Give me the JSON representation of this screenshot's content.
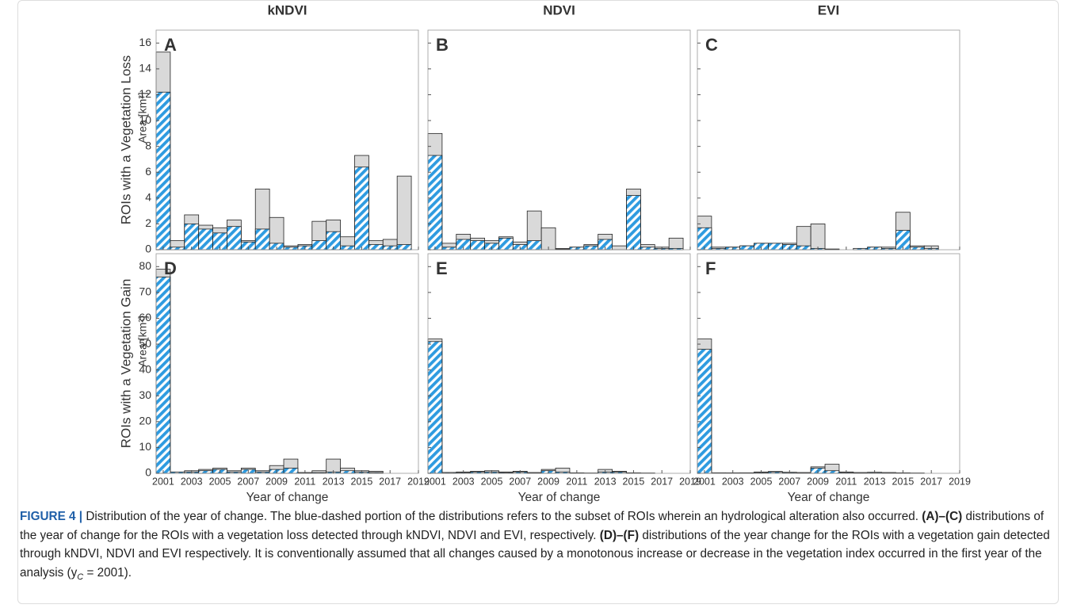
{
  "chart_data": [
    {
      "type": "bar",
      "title": "kNDVI",
      "panel": "A",
      "row_label": "ROIs with a Vegetation Loss",
      "ylabel": "Area [km²]",
      "x": [
        2001,
        2002,
        2003,
        2004,
        2005,
        2006,
        2007,
        2008,
        2009,
        2010,
        2011,
        2012,
        2013,
        2014,
        2015,
        2016,
        2017,
        2018
      ],
      "series": [
        {
          "color": "#d9d9d9",
          "values": [
            15.3,
            0.7,
            2.7,
            1.9,
            1.7,
            2.3,
            0.7,
            4.7,
            2.5,
            0.3,
            0.4,
            2.2,
            2.3,
            1.0,
            7.3,
            0.7,
            0.8,
            5.7
          ]
        },
        {
          "color": "#2e9be0",
          "pattern": "hatch",
          "values": [
            12.2,
            0.2,
            2.0,
            1.6,
            1.3,
            1.8,
            0.6,
            1.6,
            0.5,
            0.2,
            0.3,
            0.7,
            1.4,
            0.3,
            6.4,
            0.4,
            0.3,
            0.4
          ]
        }
      ],
      "xlim": [
        2000.5,
        2019
      ],
      "xticks": [
        2001,
        2003,
        2005,
        2007,
        2009,
        2011,
        2013,
        2015,
        2017,
        2019
      ],
      "xticklabels": false,
      "ylim": [
        0,
        17
      ],
      "yticks": [
        0,
        2,
        4,
        6,
        8,
        10,
        12,
        14,
        16
      ],
      "yticklabels": true
    },
    {
      "type": "bar",
      "title": "NDVI",
      "panel": "B",
      "x": [
        2001,
        2002,
        2003,
        2004,
        2005,
        2006,
        2007,
        2008,
        2009,
        2010,
        2011,
        2012,
        2013,
        2014,
        2015,
        2016,
        2017,
        2018
      ],
      "series": [
        {
          "color": "#d9d9d9",
          "values": [
            9.0,
            0.5,
            1.2,
            0.9,
            0.7,
            1.0,
            0.6,
            3.0,
            1.7,
            0.1,
            0.2,
            0.4,
            1.2,
            0.3,
            4.7,
            0.4,
            0.2,
            0.9
          ]
        },
        {
          "color": "#2e9be0",
          "pattern": "hatch",
          "values": [
            7.3,
            0.2,
            0.8,
            0.7,
            0.5,
            0.9,
            0.4,
            0.7,
            0.0,
            0.05,
            0.2,
            0.3,
            0.8,
            0.0,
            4.2,
            0.2,
            0.1,
            0.1
          ]
        }
      ],
      "xlim": [
        2000.5,
        2019
      ],
      "xticks": [
        2001,
        2003,
        2005,
        2007,
        2009,
        2011,
        2013,
        2015,
        2017,
        2019
      ],
      "xticklabels": false,
      "ylim": [
        0,
        17
      ],
      "yticks": [
        0,
        2,
        4,
        6,
        8,
        10,
        12,
        14,
        16
      ],
      "yticklabels": false
    },
    {
      "type": "bar",
      "title": "EVI",
      "panel": "C",
      "x": [
        2001,
        2002,
        2003,
        2004,
        2005,
        2006,
        2007,
        2008,
        2009,
        2010,
        2011,
        2012,
        2013,
        2014,
        2015,
        2016,
        2017,
        2018
      ],
      "series": [
        {
          "color": "#d9d9d9",
          "values": [
            2.6,
            0.2,
            0.2,
            0.3,
            0.5,
            0.5,
            0.5,
            1.8,
            2.0,
            0.05,
            0,
            0.1,
            0.2,
            0.2,
            2.9,
            0.3,
            0.3,
            0
          ]
        },
        {
          "color": "#2e9be0",
          "pattern": "hatch",
          "values": [
            1.7,
            0.1,
            0.2,
            0.3,
            0.5,
            0.5,
            0.4,
            0.3,
            0.1,
            0.05,
            0,
            0.1,
            0.2,
            0.1,
            1.5,
            0.2,
            0.1,
            0
          ]
        }
      ],
      "xlim": [
        2000.5,
        2019
      ],
      "xticks": [
        2001,
        2003,
        2005,
        2007,
        2009,
        2011,
        2013,
        2015,
        2017,
        2019
      ],
      "xticklabels": false,
      "ylim": [
        0,
        17
      ],
      "yticks": [
        0,
        2,
        4,
        6,
        8,
        10,
        12,
        14,
        16
      ],
      "yticklabels": false
    },
    {
      "type": "bar",
      "panel": "D",
      "row_label": "ROIs with a Vegetation Gain",
      "ylabel": "Area [km²]",
      "xlabel": "Year of change",
      "x": [
        2001,
        2002,
        2003,
        2004,
        2005,
        2006,
        2007,
        2008,
        2009,
        2010,
        2011,
        2012,
        2013,
        2014,
        2015,
        2016,
        2017,
        2018
      ],
      "series": [
        {
          "color": "#d9d9d9",
          "values": [
            79,
            0.5,
            1.0,
            1.5,
            2.0,
            1.0,
            2.0,
            1.0,
            3.0,
            5.5,
            0.3,
            1.0,
            5.5,
            2.0,
            1.0,
            0.8,
            0,
            0
          ]
        },
        {
          "color": "#2e9be0",
          "pattern": "hatch",
          "values": [
            76,
            0.5,
            0.5,
            1.0,
            1.5,
            0.5,
            1.5,
            0.5,
            1.5,
            2.0,
            0.2,
            0.3,
            0.5,
            1.0,
            0.5,
            0.3,
            0,
            0
          ]
        }
      ],
      "xlim": [
        2000.5,
        2019
      ],
      "xticks": [
        2001,
        2003,
        2005,
        2007,
        2009,
        2011,
        2013,
        2015,
        2017,
        2019
      ],
      "xticklabels": true,
      "ylim": [
        0,
        85
      ],
      "yticks": [
        0,
        10,
        20,
        30,
        40,
        50,
        60,
        70,
        80
      ],
      "yticklabels": true
    },
    {
      "type": "bar",
      "panel": "E",
      "xlabel": "Year of change",
      "x": [
        2001,
        2002,
        2003,
        2004,
        2005,
        2006,
        2007,
        2008,
        2009,
        2010,
        2011,
        2012,
        2013,
        2014,
        2015,
        2016,
        2017,
        2018
      ],
      "series": [
        {
          "color": "#d9d9d9",
          "values": [
            52,
            0.3,
            0.5,
            0.8,
            1.0,
            0.5,
            0.8,
            0.3,
            1.5,
            2.0,
            0.2,
            0.1,
            1.5,
            0.8,
            0.2,
            0.1,
            0,
            0
          ]
        },
        {
          "color": "#2e9be0",
          "pattern": "hatch",
          "values": [
            51,
            0.3,
            0.3,
            0.5,
            0.5,
            0.3,
            0.5,
            0.2,
            1.0,
            0.5,
            0.1,
            0.1,
            0.5,
            0.5,
            0.1,
            0.1,
            0,
            0
          ]
        }
      ],
      "xlim": [
        2000.5,
        2019
      ],
      "xticks": [
        2001,
        2003,
        2005,
        2007,
        2009,
        2011,
        2013,
        2015,
        2017,
        2019
      ],
      "xticklabels": true,
      "ylim": [
        0,
        85
      ],
      "yticks": [
        0,
        10,
        20,
        30,
        40,
        50,
        60,
        70,
        80
      ],
      "yticklabels": false
    },
    {
      "type": "bar",
      "panel": "F",
      "xlabel": "Year of change",
      "x": [
        2001,
        2002,
        2003,
        2004,
        2005,
        2006,
        2007,
        2008,
        2009,
        2010,
        2011,
        2012,
        2013,
        2014,
        2015,
        2016,
        2017,
        2018
      ],
      "series": [
        {
          "color": "#d9d9d9",
          "values": [
            52,
            0.2,
            0.2,
            0.2,
            0.5,
            0.7,
            0.4,
            0.3,
            2.5,
            3.5,
            0.5,
            0.3,
            0.4,
            0.3,
            0.2,
            0.1,
            0,
            0
          ]
        },
        {
          "color": "#2e9be0",
          "pattern": "hatch",
          "values": [
            48,
            0.2,
            0.1,
            0.2,
            0.3,
            0.5,
            0.3,
            0.2,
            2.0,
            1.0,
            0.3,
            0.2,
            0.3,
            0.2,
            0.1,
            0.1,
            0,
            0
          ]
        }
      ],
      "xlim": [
        2000.5,
        2019
      ],
      "xticks": [
        2001,
        2003,
        2005,
        2007,
        2009,
        2011,
        2013,
        2015,
        2017,
        2019
      ],
      "xticklabels": true,
      "ylim": [
        0,
        85
      ],
      "yticks": [
        0,
        10,
        20,
        30,
        40,
        50,
        60,
        70,
        80
      ],
      "yticklabels": false
    }
  ],
  "caption": {
    "label": "FIGURE 4 |",
    "parts": [
      {
        "text": " Distribution of the year of change. The blue-dashed portion of the distributions refers to the subset of ROIs wherein an hydrological alteration also occurred. "
      },
      {
        "text": "(A)–(C)",
        "bold": true
      },
      {
        "text": " distributions of the year of change for the ROIs with a vegetation loss detected through kNDVI, NDVI and EVI, respectively. "
      },
      {
        "text": "(D)–(F)",
        "bold": true
      },
      {
        "text": " distributions of the year change for the ROIs with a vegetation gain detected through kNDVI, NDVI and EVI respectively. It is conventionally assumed that all changes caused by a monotonous increase or decrease in the vegetation index occurred in the first year of the analysis (y"
      },
      {
        "text": "C",
        "sub": true
      },
      {
        "text": " = 2001)."
      }
    ]
  }
}
